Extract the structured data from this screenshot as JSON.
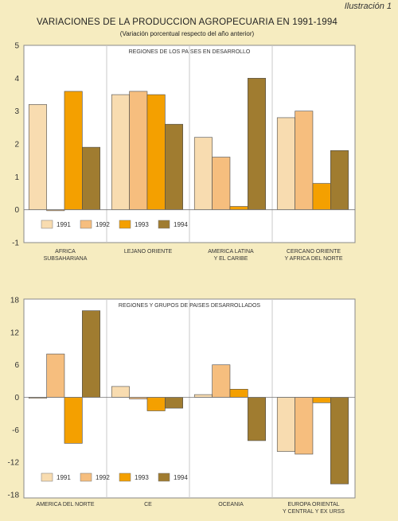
{
  "header": {
    "label": "Ilustración 1",
    "title": "VARIACIONES DE LA PRODUCCION AGROPECUARIA EN 1991-1994",
    "subtitle": "(Variación porcentual respecto del año anterior)"
  },
  "colors": {
    "background": "#f6ecc0",
    "panel": "#ffffff",
    "series": [
      "#f8dcb0",
      "#f6be7e",
      "#f4a000",
      "#a07c30"
    ]
  },
  "chart_data": [
    {
      "type": "bar",
      "panel_title": "REGIONES DE LOS PAISES EN DESARROLLO",
      "categories": [
        "AFRICA\nSUBSAHARIANA",
        "LEJANO ORIENTE",
        "AMERICA LATINA\nY EL CARIBE",
        "CERCANO ORIENTE\nY AFRICA DEL NORTE"
      ],
      "series": [
        {
          "name": "1991",
          "values": [
            3.2,
            3.5,
            2.2,
            2.8
          ]
        },
        {
          "name": "1992",
          "values": [
            0.0,
            3.6,
            1.6,
            3.0
          ]
        },
        {
          "name": "1993",
          "values": [
            3.6,
            3.5,
            0.1,
            0.8
          ]
        },
        {
          "name": "1994",
          "values": [
            1.9,
            2.6,
            4.0,
            1.8
          ]
        }
      ],
      "yticks": [
        5,
        4,
        3,
        2,
        1,
        0,
        -1
      ],
      "ylim": [
        -1,
        5
      ],
      "grid": false,
      "legend": "bottom"
    },
    {
      "type": "bar",
      "panel_title": "REGIONES Y GRUPOS DE PAISES DESARROLLADOS",
      "categories": [
        "AMERICA DEL NORTE",
        "CE",
        "OCEANIA",
        "EUROPA ORIENTAL\nY CENTRAL Y EX URSS"
      ],
      "series": [
        {
          "name": "1991",
          "values": [
            0.0,
            2.0,
            0.5,
            -10.0
          ]
        },
        {
          "name": "1992",
          "values": [
            8.0,
            -0.3,
            6.0,
            -10.5
          ]
        },
        {
          "name": "1993",
          "values": [
            -8.5,
            -2.5,
            1.5,
            -1.0
          ]
        },
        {
          "name": "1994",
          "values": [
            16.0,
            -2.0,
            -8.0,
            -16.0
          ]
        }
      ],
      "yticks": [
        18,
        12,
        6,
        0,
        -6,
        -12,
        -18
      ],
      "ylim": [
        -18,
        18
      ],
      "grid": false,
      "legend": "bottom"
    }
  ]
}
